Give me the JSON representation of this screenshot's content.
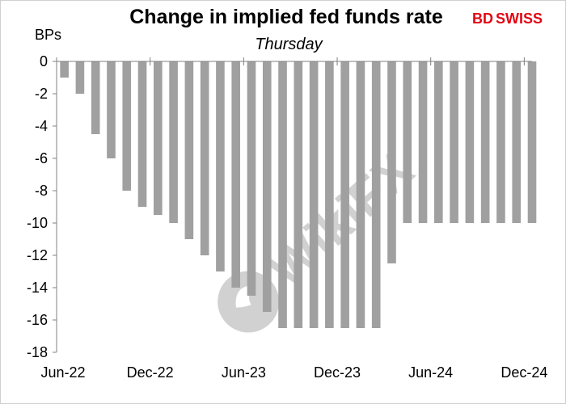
{
  "brand": {
    "bd": "BD",
    "swiss": "SWISS",
    "color": "#e30613"
  },
  "watermark": {
    "text": "WikiFX"
  },
  "chart_data": {
    "type": "bar",
    "title": "Change in implied fed funds rate",
    "subtitle": "Thursday",
    "ylabel": "BPs",
    "ylim": [
      -18,
      0
    ],
    "yticks": [
      0,
      -2,
      -4,
      -6,
      -8,
      -10,
      -12,
      -14,
      -16,
      -18
    ],
    "xtick_labels": [
      "Jun-22",
      "Dec-22",
      "Jun-23",
      "Dec-23",
      "Jun-24",
      "Dec-24"
    ],
    "bar_color": "#a0a0a0",
    "categories": [
      "Jun-22",
      "Jul-22",
      "Aug-22",
      "Sep-22",
      "Oct-22",
      "Nov-22",
      "Dec-22",
      "Jan-23",
      "Feb-23",
      "Mar-23",
      "Apr-23",
      "May-23",
      "Jun-23",
      "Jul-23",
      "Aug-23",
      "Sep-23",
      "Oct-23",
      "Nov-23",
      "Dec-23",
      "Jan-24",
      "Feb-24",
      "Mar-24",
      "Apr-24",
      "May-24",
      "Jun-24",
      "Jul-24",
      "Aug-24",
      "Sep-24",
      "Oct-24",
      "Nov-24",
      "Dec-24"
    ],
    "values": [
      -1,
      -2,
      -4.5,
      -6,
      -8,
      -9,
      -9.5,
      -10,
      -11,
      -12,
      -13,
      -14,
      -14.5,
      -15.5,
      -16.5,
      -16.5,
      -16.5,
      -16.5,
      -16.5,
      -16.5,
      -16.5,
      -12.5,
      -10,
      -10,
      -10,
      -10,
      -10,
      -10,
      -10,
      -10,
      -10
    ],
    "grid": false,
    "legend": "none"
  }
}
